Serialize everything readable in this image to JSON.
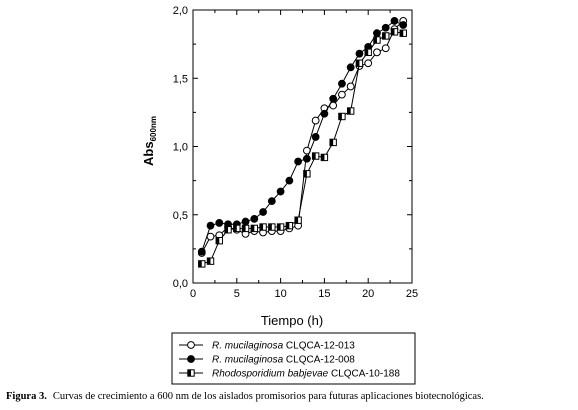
{
  "chart_data": {
    "type": "line",
    "xlabel": "Tiempo (h)",
    "ylabel_main": "Abs",
    "ylabel_sub": "600nm",
    "xlim": [
      0,
      25
    ],
    "ylim": [
      0.0,
      2.0
    ],
    "x_ticks": [
      "0",
      "5",
      "10",
      "15",
      "20",
      "25"
    ],
    "y_ticks": [
      "0,0",
      "0,5",
      "1,0",
      "1,5",
      "2,0"
    ],
    "grid": false,
    "legend_position": "below-plot",
    "series": [
      {
        "name_italic": "R. mucilaginosa",
        "name_rest": " CLQCA-12-013",
        "marker": "open-circle",
        "x": [
          1,
          2,
          3,
          4,
          5,
          6,
          7,
          8,
          9,
          10,
          11,
          12,
          13,
          14,
          15,
          16,
          17,
          18,
          19,
          20,
          21,
          22,
          23,
          24
        ],
        "y": [
          0.22,
          0.34,
          0.35,
          0.41,
          0.39,
          0.36,
          0.38,
          0.37,
          0.38,
          0.38,
          0.4,
          0.42,
          0.97,
          1.19,
          1.28,
          1.3,
          1.38,
          1.44,
          1.59,
          1.61,
          1.69,
          1.72,
          1.86,
          1.92
        ]
      },
      {
        "name_italic": "R. mucilaginosa",
        "name_rest": " CLQCA-12-008",
        "marker": "filled-circle",
        "x": [
          1,
          2,
          3,
          4,
          5,
          6,
          7,
          8,
          9,
          10,
          11,
          12,
          13,
          14,
          15,
          16,
          17,
          18,
          19,
          20,
          21,
          22,
          23,
          24
        ],
        "y": [
          0.23,
          0.42,
          0.44,
          0.43,
          0.43,
          0.45,
          0.47,
          0.52,
          0.6,
          0.67,
          0.75,
          0.89,
          0.91,
          1.07,
          1.24,
          1.35,
          1.46,
          1.58,
          1.68,
          1.73,
          1.83,
          1.87,
          1.92,
          1.89
        ]
      },
      {
        "name_italic": "Rhodosporidium babjevae",
        "name_rest": " CLQCA-10-188",
        "marker": "half-filled-square",
        "x": [
          1,
          2,
          3,
          4,
          5,
          6,
          7,
          8,
          9,
          10,
          11,
          12,
          13,
          14,
          15,
          16,
          17,
          18,
          19,
          20,
          21,
          22,
          23,
          24
        ],
        "y": [
          0.14,
          0.16,
          0.31,
          0.39,
          0.4,
          0.4,
          0.4,
          0.41,
          0.41,
          0.41,
          0.42,
          0.46,
          0.8,
          0.93,
          0.92,
          1.03,
          1.22,
          1.26,
          1.61,
          1.69,
          1.78,
          1.81,
          1.84,
          1.83
        ]
      }
    ]
  },
  "caption": {
    "label": "Figura 3.",
    "text": "Curvas de crecimiento a 600 nm de los aislados promisorios para futuras aplicaciones biotecnológicas."
  }
}
